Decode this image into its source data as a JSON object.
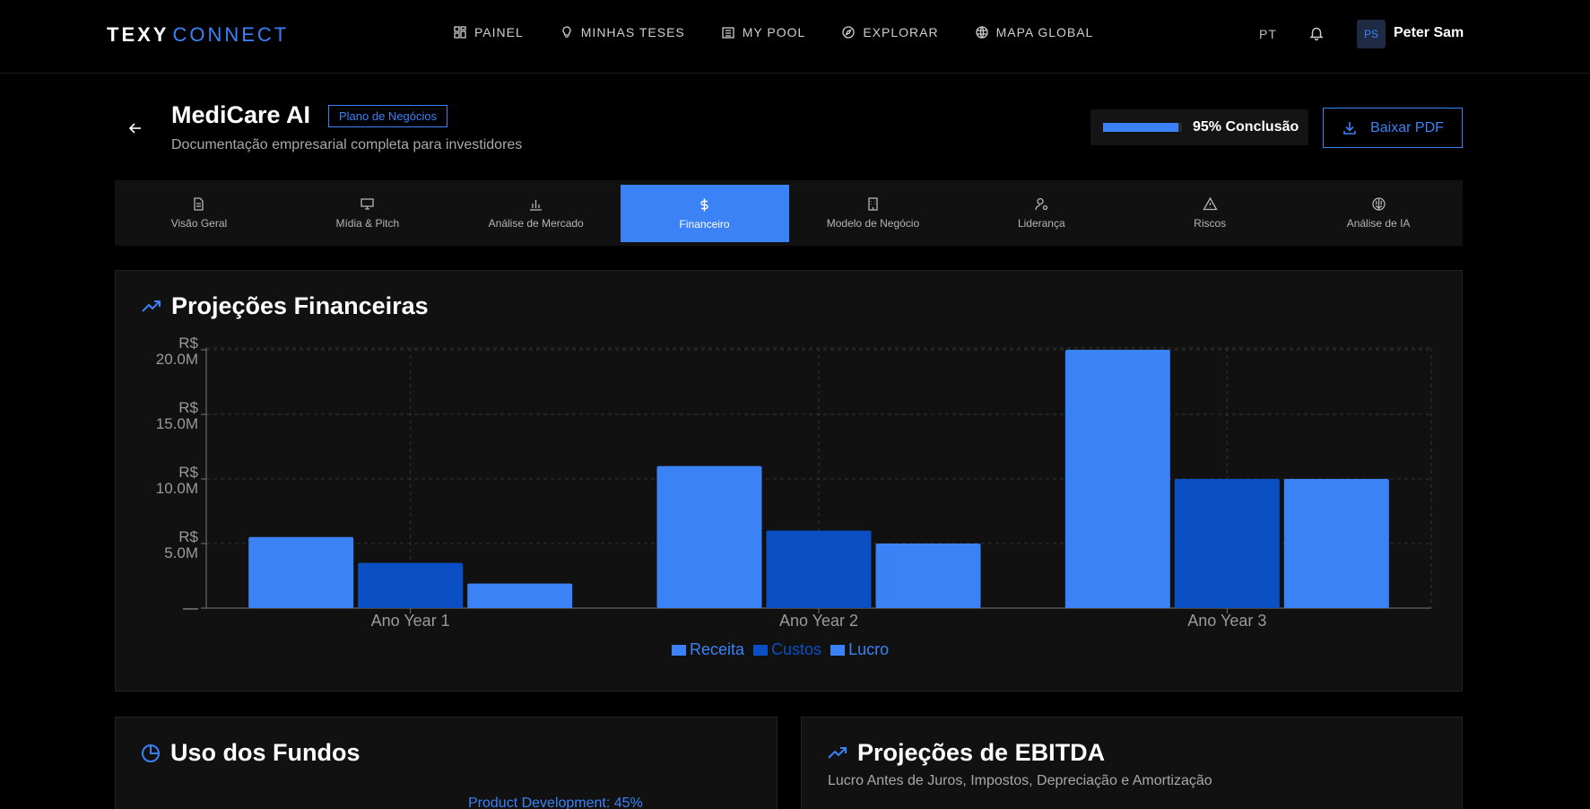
{
  "brand": {
    "bold": "TEXY",
    "light": "CONNECT",
    "accent": "#3b82f6"
  },
  "nav": {
    "items": [
      {
        "label": "PAINEL",
        "icon": "dashboard-icon"
      },
      {
        "label": "MINHAS TESES",
        "icon": "lightbulb-icon"
      },
      {
        "label": "MY POOL",
        "icon": "building-icon"
      },
      {
        "label": "EXPLORAR",
        "icon": "compass-icon"
      },
      {
        "label": "MAPA GLOBAL",
        "icon": "globe-icon"
      }
    ],
    "lang": "PT",
    "user_initials": "PS",
    "user_name": "Peter Sam"
  },
  "header": {
    "title": "MediCare AI",
    "badge": "Plano de Negócios",
    "subtitle": "Documentação empresarial completa para investidores",
    "progress_label": "95% Conclusão",
    "progress_value": 0.95,
    "pdf_label": "Baixar PDF"
  },
  "tabs": [
    {
      "label": "Visão Geral",
      "icon": "document-icon"
    },
    {
      "label": "Mídia & Pitch",
      "icon": "presentation-icon"
    },
    {
      "label": "Análise de Mercado",
      "icon": "bar-chart-icon"
    },
    {
      "label": "Financeiro",
      "icon": "dollar-icon",
      "active": true
    },
    {
      "label": "Modelo de Negócio",
      "icon": "building-icon"
    },
    {
      "label": "Liderança",
      "icon": "user-gear-icon"
    },
    {
      "label": "Riscos",
      "icon": "warning-icon"
    },
    {
      "label": "Análise de IA",
      "icon": "brain-icon"
    }
  ],
  "projections": {
    "title": "Projeções Financeiras"
  },
  "chart_data": {
    "type": "bar",
    "title": "Projeções Financeiras",
    "categories": [
      "Ano Year 1",
      "Ano Year 2",
      "Ano Year 3"
    ],
    "series": [
      {
        "name": "Receita",
        "color": "#3b82f6",
        "values": [
          5.5,
          11.0,
          20.0
        ]
      },
      {
        "name": "Custos",
        "color": "#0a4fc4",
        "values": [
          3.5,
          6.0,
          10.0
        ]
      },
      {
        "name": "Lucro",
        "color": "#3b82f6",
        "values": [
          1.9,
          5.0,
          10.0
        ]
      }
    ],
    "y_ticks": [
      {
        "value": 0,
        "label": "—"
      },
      {
        "value": 5,
        "label_top": "R$",
        "label_bottom": "5.0M"
      },
      {
        "value": 10,
        "label_top": "R$",
        "label_bottom": "10.0M"
      },
      {
        "value": 15,
        "label_top": "R$",
        "label_bottom": "15.0M"
      },
      {
        "value": 20,
        "label_top": "R$",
        "label_bottom": "20.0M"
      }
    ],
    "ylim": [
      0,
      20
    ],
    "grid": true,
    "legend": "bottom-center"
  },
  "funds": {
    "title": "Uso dos Fundos",
    "first_label": "Product Development: 45%"
  },
  "ebitda": {
    "title": "Projeções de EBITDA",
    "subtitle": "Lucro Antes de Juros, Impostos, Depreciação e Amortização"
  }
}
